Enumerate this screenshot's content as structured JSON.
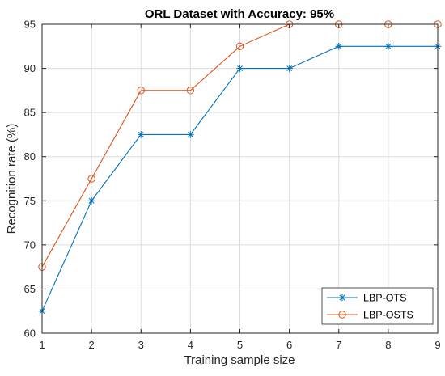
{
  "chart_data": {
    "type": "line",
    "title": "ORL Dataset with Accuracy: 95%",
    "xlabel": "Training sample size",
    "ylabel": "Recognition rate (%)",
    "x": [
      1,
      2,
      3,
      4,
      5,
      6,
      7,
      8,
      9
    ],
    "xlim": [
      1,
      9
    ],
    "ylim": [
      60,
      95
    ],
    "xticks": [
      "1",
      "2",
      "3",
      "4",
      "5",
      "6",
      "7",
      "8",
      "9"
    ],
    "yticks": [
      "60",
      "65",
      "70",
      "75",
      "80",
      "85",
      "90",
      "95"
    ],
    "grid": true,
    "legend_position": "bottom-right",
    "series": [
      {
        "name": "LBP-OTS",
        "color": "#0072BD",
        "marker": "asterisk",
        "values": [
          62.5,
          75,
          82.5,
          82.5,
          90,
          90,
          92.5,
          92.5,
          92.5
        ]
      },
      {
        "name": "LBP-OSTS",
        "color": "#D95319",
        "marker": "circle",
        "values": [
          67.5,
          77.5,
          87.5,
          87.5,
          92.5,
          95,
          95,
          95,
          95
        ]
      }
    ]
  }
}
